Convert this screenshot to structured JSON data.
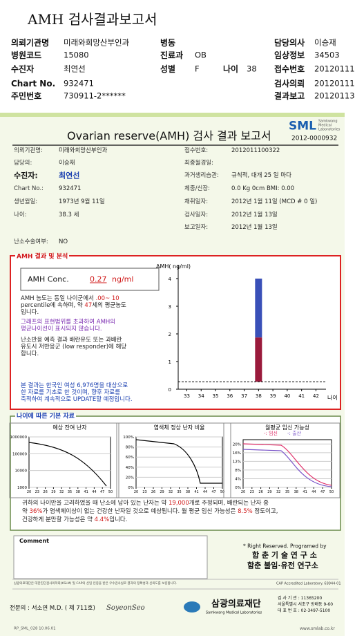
{
  "header": {
    "title": "AMH 검사결과보고서",
    "fields": [
      {
        "label": "의뢰기관명",
        "value": "미래와희망산부인과"
      },
      {
        "label": "병동"
      },
      {
        "label": "담당의사",
        "value": "이승재"
      },
      {
        "label": "병원코드",
        "value": "15080"
      },
      {
        "label": "진료과",
        "value": "OB"
      },
      {
        "label": "임상정보",
        "value": "34503"
      },
      {
        "label": "수진자",
        "value": "최연선"
      },
      {
        "label": "성별",
        "value": "F"
      },
      {
        "label": "나이",
        "value": "38"
      },
      {
        "label": "접수번호",
        "value": "20120111"
      },
      {
        "label": "Chart No.",
        "value": "932471"
      },
      {
        "label": "검사의뢰",
        "value": "20120111"
      },
      {
        "label": "주민번호",
        "value": "730911-2******"
      },
      {
        "label": "결과보고",
        "value": "20120113"
      }
    ]
  },
  "report": {
    "logo": "SML",
    "logo_sub": [
      "Samkwang",
      "Medical",
      "Laboratories"
    ],
    "title": "Ovarian reserve(AMH) 검사 결과 보고서",
    "number": "2012-0000932",
    "info_left": [
      {
        "label": "의뢰기관명:",
        "value": "미래와희망산부인과"
      },
      {
        "label": "담당의:",
        "value": "이승재"
      },
      {
        "label": "수진자:",
        "value": "최연선"
      },
      {
        "label": "Chart No.:",
        "value": "932471"
      },
      {
        "label": "생년월일:",
        "value": "1973년 9월 11일"
      },
      {
        "label": "나이:",
        "value": "38.3 세"
      },
      {
        "label": "난소수술여부:",
        "value": "NO"
      }
    ],
    "info_right": [
      {
        "label": "접수번호:",
        "value": "2012011100322"
      },
      {
        "label": "최종월경일:"
      },
      {
        "label": "과거생리습관:",
        "value": "규칙적, 대개  25 일 마다"
      },
      {
        "label": "체중/신장:",
        "value": "0.0 Kg      0cm    BMI:  0.00"
      },
      {
        "label": "채취일자:",
        "value": "2012년 1월 11일  (MCD # 0 일)"
      },
      {
        "label": "검사일자:",
        "value": "2012년 1월 13일"
      },
      {
        "label": "보고일자:",
        "value": "2012년 1월 13일"
      }
    ]
  },
  "amh": {
    "section_title": "AMH 결과 및 분석",
    "conc_label": "AMH Conc.",
    "conc_value": "0.27",
    "conc_unit": "ng/ml",
    "analysis": [
      [
        "AMH 농도는 동일 나이군에서 ",
        ".00~ 10"
      ],
      [
        "percentile에 속하며, 약 ",
        "47",
        "세의 평균농도"
      ],
      [
        "입니다."
      ]
    ],
    "note": [
      [
        "그래프의 표현범위를 초과하여 AMH의"
      ],
      [
        "평균나이선이 표시되지 않습니다."
      ]
    ],
    "response": [
      [
        "난소반응 예측 결과 배란유도 또는 과배란"
      ],
      [
        "유도시 저반응군 (low responder)에 해당"
      ],
      [
        "합니다."
      ]
    ],
    "disclaimer": [
      [
        "본 결과는 한국인 여성 6,976명을 대상으로"
      ],
      [
        "한 자료를 기초로 한 것이며, 향후 자료를"
      ],
      [
        "축적하여 계속적으로 UPDATE할 예정입니다."
      ]
    ],
    "chart": {
      "type": "bar",
      "ylabel": "AMH( ng/ml)",
      "xlabel": "나이",
      "ylim": [
        0,
        4.5
      ],
      "yticks": [
        0,
        1,
        2,
        3,
        4
      ],
      "xlim": [
        32.4,
        42.7
      ],
      "xticks": [
        33,
        34,
        35,
        36,
        37,
        38,
        39,
        40,
        41,
        42
      ],
      "measured": 0.27,
      "bars": [
        {
          "x": 38,
          "from": 1.87,
          "to": 4.0,
          "color": "#3a50b8"
        },
        {
          "x": 38,
          "from": 0.27,
          "to": 1.87,
          "color": "#9a1a3c"
        }
      ]
    }
  },
  "basic": {
    "section_title": "나이에 따른 기본 자료",
    "charts": [
      {
        "title": "예상 잔여 난자",
        "log": true,
        "ylim": [
          1000,
          1000000
        ],
        "yticks": [
          1000,
          10000,
          100000,
          1000000
        ],
        "xlim": [
          20,
          50
        ],
        "xticks": [
          20,
          23,
          26,
          29,
          32,
          35,
          38,
          41,
          44,
          47,
          50
        ]
      },
      {
        "title": "염색체 정상 난자 비율",
        "ylim": [
          0,
          100
        ],
        "yticks": [
          {
            "value": 0,
            "label": "0%"
          },
          {
            "value": 20,
            "label": "20%"
          },
          {
            "value": 40,
            "label": "40%"
          },
          {
            "value": 60,
            "label": "60%"
          },
          {
            "value": 80,
            "label": "80%"
          },
          {
            "value": 100,
            "label": "100%"
          }
        ],
        "xlim": [
          20,
          50
        ],
        "xticks": [
          20,
          23,
          26,
          29,
          32,
          35,
          38,
          41,
          44,
          47,
          50
        ]
      },
      {
        "title": "월평균 임신 가능성",
        "legend": [
          {
            "name": "-: 임신",
            "color": "#e0306a"
          },
          {
            "name": "-: 출산",
            "color": "#7a55c8"
          }
        ],
        "ylim": [
          0,
          22
        ],
        "yticks": [
          {
            "value": 0,
            "label": "0%"
          },
          {
            "value": 4,
            "label": "4%"
          },
          {
            "value": 8,
            "label": "8%"
          },
          {
            "value": 12,
            "label": "12%"
          },
          {
            "value": 16,
            "label": "16%"
          },
          {
            "value": 20,
            "label": "20%"
          }
        ],
        "xlim": [
          20,
          50
        ],
        "xticks": [
          20,
          23,
          26,
          29,
          32,
          35,
          38,
          41,
          44,
          47,
          50
        ]
      }
    ],
    "summary": [
      [
        "귀하의 나이만을 고려하였을 때 난소에 남아 있는 난자는 약 ",
        "19,000",
        "개로 추정되며, 배란되는 난자 중"
      ],
      [
        "약 ",
        "36%",
        "가 염색체이상이 없는 건강한 난자일 것으로 예상됩니다. 월 평균 임신 가능성은 ",
        "8.5%",
        " 정도이고,"
      ],
      [
        "건강하게 분만할 가능성은 약 ",
        "4.4%",
        "입니다."
      ]
    ]
  },
  "footer": {
    "comment_label": "Comment",
    "credit": "* Right Reserved. Programed by",
    "lab1": "함 춘  기 술  연 구 소",
    "lab2": "함춘 불임·유전 연구소",
    "note": "삼광의료재단은 대한진단검사의학회(KSLM) 및 CAP의 신임 인증을 받은 우수검사실로 결과의 정확성과 신뢰도를 보증합니다.",
    "cap": "CAP Accredited Laboratory.  69944-01",
    "doctor": "전문의 : 서소연 M.D. ( 제 711호)",
    "signature": "SoyeonSeo",
    "foundation": "삼광의료재단",
    "foundation_en": "Samkwang Medical Laboratories",
    "contact": [
      "검 사 기 관 : 11365200",
      "서울특별시 서초구 방배동 9-60",
      "대 표 번 호 : 02-3497-5100"
    ],
    "form_code": "RP_SML_028  10.06.01",
    "website": "www.smlab.co.kr"
  }
}
